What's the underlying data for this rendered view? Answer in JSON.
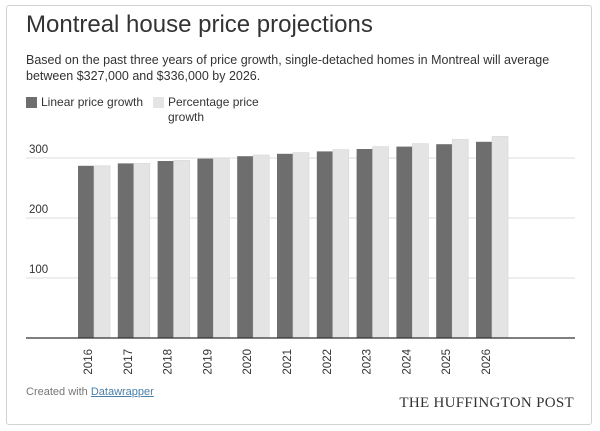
{
  "title": "Montreal house price projections",
  "subtitle": "Based on the past three years of price growth, single-detached homes in Montreal will average between $327,000 and $336,000 by 2026.",
  "footer": {
    "created_with": "Created with",
    "link_text": "Datawrapper"
  },
  "brand": "THE HUFFINGTON POST",
  "colors": {
    "linear": "#6e6e6e",
    "percentage": "#e4e4e4",
    "grid": "#dddddd",
    "axis": "#333333"
  },
  "chart_data": {
    "type": "bar",
    "title": "Montreal house price projections",
    "xlabel": "",
    "ylabel": "",
    "ylim": [
      0,
      350
    ],
    "yticks": [
      100,
      200,
      300
    ],
    "ytick_labels": [
      "100",
      "200",
      "300"
    ],
    "categories": [
      "2016",
      "2017",
      "2018",
      "2019",
      "2020",
      "2021",
      "2022",
      "2023",
      "2024",
      "2025",
      "2026"
    ],
    "series": [
      {
        "name": "Linear price growth",
        "values": [
          287,
          291,
          295,
          299,
          303,
          307,
          311,
          315,
          319,
          323,
          327
        ]
      },
      {
        "name": "Percentage price growth",
        "values": [
          287,
          291,
          296,
          300,
          305,
          309,
          314,
          319,
          324,
          331,
          336
        ]
      }
    ]
  }
}
